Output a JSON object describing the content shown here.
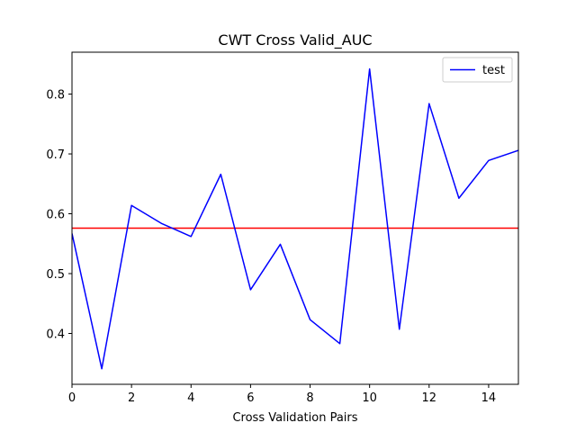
{
  "chart_data": {
    "type": "line",
    "title": "CWT Cross Valid_AUC",
    "xlabel": "Cross Validation Pairs",
    "ylabel": "",
    "xlim": [
      0,
      15
    ],
    "ylim": [
      0.315,
      0.87
    ],
    "xticks": [
      0,
      2,
      4,
      6,
      8,
      10,
      12,
      14
    ],
    "yticks": [
      0.4,
      0.5,
      0.6,
      0.7,
      0.8
    ],
    "xtick_labels": [
      "0",
      "2",
      "4",
      "6",
      "8",
      "10",
      "12",
      "14"
    ],
    "ytick_labels": [
      "0.4",
      "0.5",
      "0.6",
      "0.7",
      "0.8"
    ],
    "grid": false,
    "legend_position": "top-right",
    "series": [
      {
        "name": "test",
        "color": "#0000ff",
        "x": [
          0,
          1,
          2,
          3,
          4,
          5,
          6,
          7,
          8,
          9,
          10,
          11,
          12,
          13,
          14,
          15
        ],
        "values": [
          0.567,
          0.341,
          0.614,
          0.584,
          0.562,
          0.666,
          0.473,
          0.549,
          0.423,
          0.383,
          0.842,
          0.407,
          0.784,
          0.626,
          0.689,
          0.706
        ]
      }
    ],
    "reference_lines": [
      {
        "orientation": "horizontal",
        "value": 0.576,
        "color": "#ff0000"
      }
    ]
  }
}
